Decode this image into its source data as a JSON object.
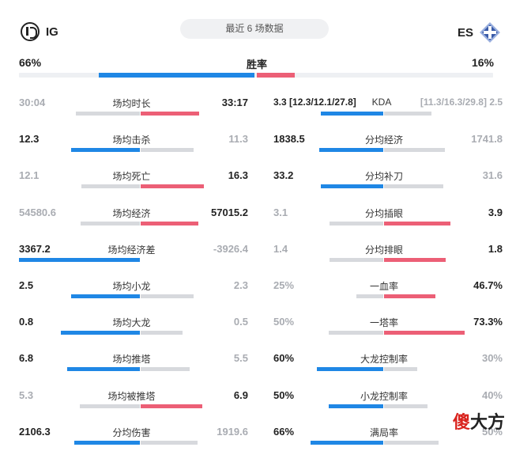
{
  "header": {
    "left_team": "IG",
    "right_team": "ES",
    "filter_label": "最近 6 场数据"
  },
  "winrate": {
    "label": "胜率",
    "left": "66%",
    "right": "16%"
  },
  "left_stats": [
    {
      "label": "场均时长",
      "left": "30:04",
      "right": "33:17",
      "winner": "right"
    },
    {
      "label": "场均击杀",
      "left": "12.3",
      "right": "11.3",
      "winner": "left"
    },
    {
      "label": "场均死亡",
      "left": "12.1",
      "right": "16.3",
      "winner": "right"
    },
    {
      "label": "场均经济",
      "left": "54580.6",
      "right": "57015.2",
      "winner": "right"
    },
    {
      "label": "场均经济差",
      "left": "3367.2",
      "right": "-3926.4",
      "winner": "left"
    },
    {
      "label": "场均小龙",
      "left": "2.5",
      "right": "2.3",
      "winner": "left"
    },
    {
      "label": "场均大龙",
      "left": "0.8",
      "right": "0.5",
      "winner": "left"
    },
    {
      "label": "场均推塔",
      "left": "6.8",
      "right": "5.5",
      "winner": "left"
    },
    {
      "label": "场均被推塔",
      "left": "5.3",
      "right": "6.9",
      "winner": "right"
    },
    {
      "label": "分均伤害",
      "left": "2106.3",
      "right": "1919.6",
      "winner": "left"
    }
  ],
  "right_stats": [
    {
      "label": "KDA",
      "left_main": "3.3",
      "left_detail": "[12.3/12.1/27.8]",
      "right_detail": "[11.3/16.3/29.8]",
      "right_main": "2.5",
      "winner": "left"
    },
    {
      "label": "分均经济",
      "left": "1838.5",
      "right": "1741.8",
      "winner": "left"
    },
    {
      "label": "分均补刀",
      "left": "33.2",
      "right": "31.6",
      "winner": "left"
    },
    {
      "label": "分均插眼",
      "left": "3.1",
      "right": "3.9",
      "winner": "right"
    },
    {
      "label": "分均排眼",
      "left": "1.4",
      "right": "1.8",
      "winner": "right"
    },
    {
      "label": "一血率",
      "left": "25%",
      "right": "46.7%",
      "winner": "right"
    },
    {
      "label": "一塔率",
      "left": "50%",
      "right": "73.3%",
      "winner": "right"
    },
    {
      "label": "大龙控制率",
      "left": "60%",
      "right": "30%",
      "winner": "left"
    },
    {
      "label": "小龙控制率",
      "left": "50%",
      "right": "40%",
      "winner": "left"
    },
    {
      "label": "满局率",
      "left": "66%",
      "right": "50%",
      "winner": "left"
    }
  ],
  "watermark": {
    "first": "傻",
    "rest": "大方"
  },
  "colors": {
    "left_team": "#1f87e5",
    "right_team": "#ec5f76",
    "muted": "#d7d9dd"
  }
}
